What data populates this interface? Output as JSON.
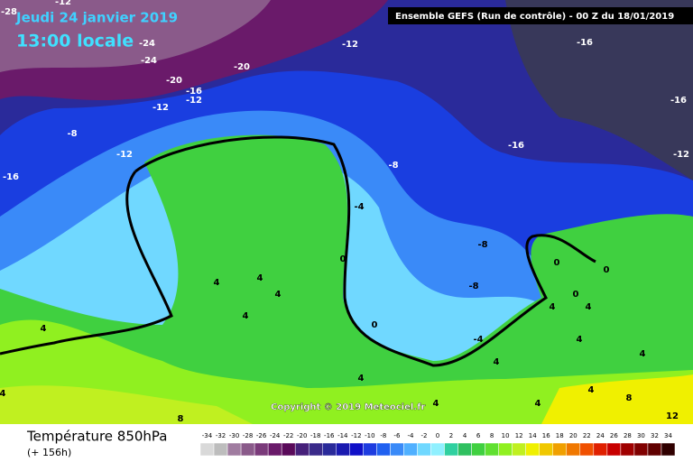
{
  "header": {
    "date": "Jeudi 24 janvier 2019",
    "time": "13:00 locale",
    "run": "Ensemble GEFS  (Run de contrôle)  - 00 Z du 18/01/2019"
  },
  "copyright": "Copyright © 2019 Meteociel.fr",
  "legend": {
    "title": "Température 850hPa",
    "lead": "(+ 156h)",
    "values": [
      -34,
      -32,
      -30,
      -28,
      -26,
      -24,
      -22,
      -20,
      -18,
      -16,
      -14,
      -12,
      -10,
      -8,
      -6,
      -4,
      -2,
      0,
      2,
      4,
      6,
      8,
      10,
      12,
      14,
      16,
      18,
      20,
      22,
      24,
      26,
      28,
      30,
      32,
      34
    ],
    "colors": [
      "#d9d9d9",
      "#bdbdbd",
      "#a07ca0",
      "#8a5a8a",
      "#7a3a7a",
      "#6a1a6a",
      "#5a0a5a",
      "#46207a",
      "#3a2a8a",
      "#2a2a9a",
      "#1a1ab0",
      "#1010c8",
      "#1e3ce0",
      "#2060f0",
      "#3a8af8",
      "#50b0ff",
      "#70d8ff",
      "#90f0ff",
      "#30d0a0",
      "#30c060",
      "#40d040",
      "#60e030",
      "#90f020",
      "#c0f020",
      "#f0f000",
      "#f0c800",
      "#f0a000",
      "#f07800",
      "#f05000",
      "#e02000",
      "#c80000",
      "#a00000",
      "#800000",
      "#600000",
      "#300000"
    ]
  },
  "contour_labels": [
    -12,
    -28,
    -24,
    -24,
    -20,
    -20,
    -16,
    -12,
    -12,
    -8,
    -12,
    -16,
    -12,
    -16,
    -16,
    -16,
    -12,
    -8,
    -4,
    -8,
    -8,
    -4,
    0,
    0,
    0,
    0,
    0,
    4,
    4,
    4,
    4,
    4,
    4,
    4,
    4,
    4,
    4,
    4,
    4,
    4,
    4,
    4,
    8,
    8,
    12
  ]
}
